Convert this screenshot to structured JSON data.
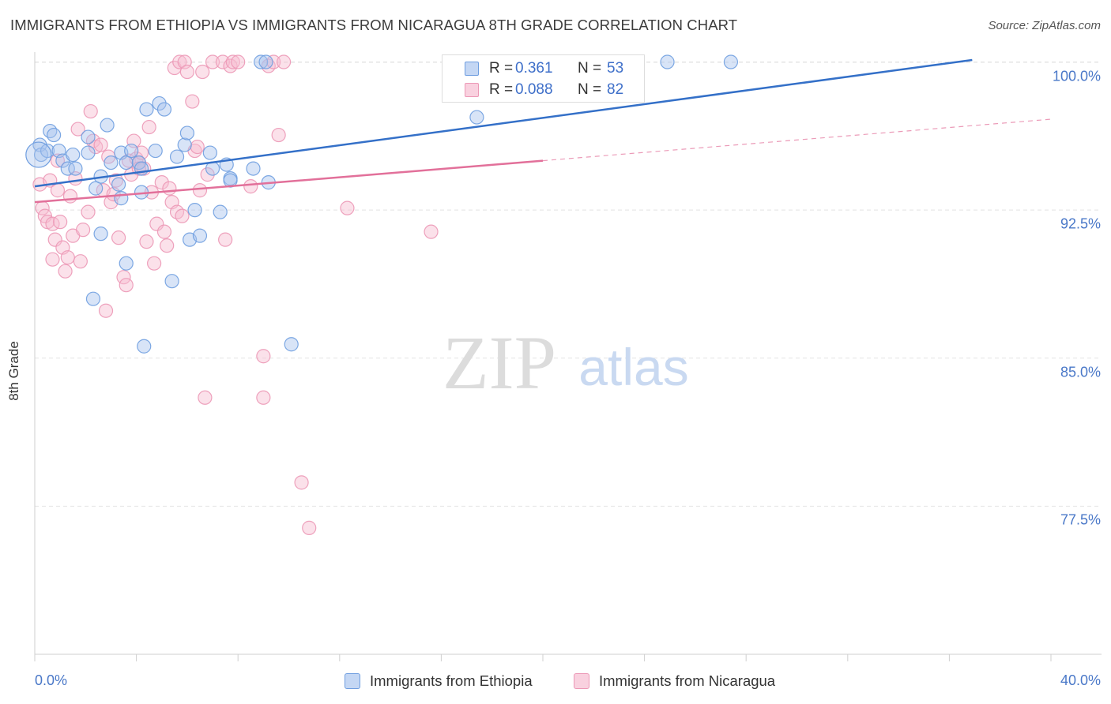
{
  "title": "IMMIGRANTS FROM ETHIOPIA VS IMMIGRANTS FROM NICARAGUA 8TH GRADE CORRELATION CHART",
  "source": "Source: ZipAtlas.com",
  "watermark": {
    "zip": "ZIP",
    "atlas": "atlas"
  },
  "legend": {
    "rows": [
      {
        "r_label": "R =",
        "r_value": "0.361",
        "n_label": "N =",
        "n_value": "53"
      },
      {
        "r_label": "R =",
        "r_value": "0.088",
        "n_label": "N =",
        "n_value": "82"
      }
    ]
  },
  "colors": {
    "ethiopia_fill": "#a8c4ee",
    "ethiopia_stroke": "#6f9ee0",
    "ethiopia_line": "#3470c8",
    "nicaragua_fill": "#f6bcd0",
    "nicaragua_stroke": "#ec98b6",
    "nicaragua_line": "#e2709a",
    "tick_text": "#4a78c8",
    "grid": "#e4e4e4"
  },
  "chart_data": {
    "type": "scatter",
    "title": "IMMIGRANTS FROM ETHIOPIA VS IMMIGRANTS FROM NICARAGUA 8TH GRADE CORRELATION CHART",
    "xlabel": "",
    "ylabel": "8th Grade",
    "xlim": [
      0,
      40
    ],
    "ylim": [
      70.0,
      100.5
    ],
    "x_tick_labels": [
      "0.0%",
      "40.0%"
    ],
    "y_ticks": [
      100.0,
      92.5,
      85.0,
      77.5
    ],
    "y_tick_labels": [
      "100.0%",
      "92.5%",
      "85.0%",
      "77.5%"
    ],
    "grid": true,
    "legend_position": "top-center",
    "series": [
      {
        "name": "Immigrants from Ethiopia",
        "r": 0.361,
        "n": 53,
        "trend": {
          "x": [
            0,
            36.9
          ],
          "y": [
            93.7,
            100.1
          ]
        },
        "points": [
          [
            0.2,
            95.8
          ],
          [
            0.25,
            95.3
          ],
          [
            0.5,
            95.5
          ],
          [
            0.6,
            96.5
          ],
          [
            0.75,
            96.3
          ],
          [
            0.95,
            95.5
          ],
          [
            1.1,
            95.0
          ],
          [
            1.3,
            94.6
          ],
          [
            1.6,
            94.6
          ],
          [
            1.5,
            95.3
          ],
          [
            2.1,
            96.2
          ],
          [
            2.1,
            95.4
          ],
          [
            2.4,
            93.6
          ],
          [
            2.6,
            94.2
          ],
          [
            2.6,
            91.3
          ],
          [
            2.85,
            96.8
          ],
          [
            3.0,
            94.9
          ],
          [
            2.3,
            88.0
          ],
          [
            3.3,
            93.8
          ],
          [
            3.4,
            93.1
          ],
          [
            3.4,
            95.4
          ],
          [
            3.6,
            94.9
          ],
          [
            3.8,
            95.5
          ],
          [
            3.6,
            89.8
          ],
          [
            4.1,
            94.9
          ],
          [
            4.2,
            94.6
          ],
          [
            4.2,
            93.4
          ],
          [
            4.3,
            85.6
          ],
          [
            4.4,
            97.6
          ],
          [
            4.75,
            95.5
          ],
          [
            4.9,
            97.9
          ],
          [
            5.1,
            97.6
          ],
          [
            5.4,
            88.9
          ],
          [
            5.6,
            95.2
          ],
          [
            5.9,
            95.8
          ],
          [
            6.0,
            96.4
          ],
          [
            6.1,
            91.0
          ],
          [
            6.3,
            92.5
          ],
          [
            6.5,
            91.2
          ],
          [
            6.9,
            95.4
          ],
          [
            7.0,
            94.6
          ],
          [
            7.3,
            92.4
          ],
          [
            7.55,
            94.8
          ],
          [
            7.7,
            94.1
          ],
          [
            7.7,
            94.0
          ],
          [
            8.6,
            94.6
          ],
          [
            8.9,
            100.0
          ],
          [
            9.1,
            100.0
          ],
          [
            9.2,
            93.9
          ],
          [
            10.1,
            85.7
          ],
          [
            17.4,
            97.2
          ],
          [
            24.9,
            100.0
          ],
          [
            27.4,
            100.0
          ]
        ]
      },
      {
        "name": "Immigrants from Nicaragua",
        "r": 0.088,
        "n": 82,
        "trend": {
          "x": [
            0,
            20
          ],
          "y": [
            92.9,
            95.0
          ]
        },
        "trend_dashed": {
          "x": [
            20,
            40
          ],
          "y": [
            95.0,
            97.1
          ]
        },
        "points": [
          [
            0.2,
            93.8
          ],
          [
            0.3,
            92.6
          ],
          [
            0.4,
            92.2
          ],
          [
            0.5,
            91.9
          ],
          [
            0.6,
            94.0
          ],
          [
            0.7,
            91.8
          ],
          [
            0.7,
            90.0
          ],
          [
            0.8,
            91.0
          ],
          [
            0.9,
            93.5
          ],
          [
            1.0,
            91.9
          ],
          [
            1.1,
            90.6
          ],
          [
            1.2,
            89.4
          ],
          [
            1.3,
            90.1
          ],
          [
            1.4,
            93.2
          ],
          [
            1.5,
            91.2
          ],
          [
            1.6,
            94.1
          ],
          [
            1.7,
            96.6
          ],
          [
            1.8,
            89.9
          ],
          [
            1.9,
            91.5
          ],
          [
            2.1,
            92.4
          ],
          [
            2.2,
            97.5
          ],
          [
            2.3,
            96.0
          ],
          [
            2.4,
            95.7
          ],
          [
            2.6,
            95.8
          ],
          [
            2.7,
            93.5
          ],
          [
            2.8,
            87.4
          ],
          [
            3.0,
            92.9
          ],
          [
            3.1,
            93.3
          ],
          [
            3.2,
            94.0
          ],
          [
            3.3,
            91.1
          ],
          [
            3.5,
            89.1
          ],
          [
            3.6,
            88.7
          ],
          [
            3.7,
            95.0
          ],
          [
            3.8,
            94.3
          ],
          [
            3.9,
            96.0
          ],
          [
            4.0,
            95.1
          ],
          [
            4.1,
            94.9
          ],
          [
            4.2,
            95.4
          ],
          [
            4.3,
            94.6
          ],
          [
            4.4,
            90.9
          ],
          [
            4.5,
            96.7
          ],
          [
            4.6,
            93.4
          ],
          [
            4.7,
            89.8
          ],
          [
            4.8,
            91.8
          ],
          [
            5.0,
            93.9
          ],
          [
            5.1,
            91.4
          ],
          [
            5.2,
            90.7
          ],
          [
            5.3,
            93.6
          ],
          [
            5.4,
            92.9
          ],
          [
            5.5,
            99.7
          ],
          [
            5.6,
            92.4
          ],
          [
            5.7,
            100.0
          ],
          [
            5.8,
            92.2
          ],
          [
            5.9,
            100.0
          ],
          [
            6.0,
            99.5
          ],
          [
            6.2,
            98.0
          ],
          [
            6.3,
            95.5
          ],
          [
            6.4,
            95.7
          ],
          [
            6.5,
            93.5
          ],
          [
            6.6,
            99.5
          ],
          [
            6.7,
            83.0
          ],
          [
            6.8,
            94.3
          ],
          [
            7.0,
            100.0
          ],
          [
            7.4,
            100.0
          ],
          [
            7.7,
            99.8
          ],
          [
            7.8,
            100.0
          ],
          [
            7.5,
            91.0
          ],
          [
            8.0,
            100.0
          ],
          [
            8.5,
            93.7
          ],
          [
            9.0,
            85.1
          ],
          [
            9.0,
            83.0
          ],
          [
            9.2,
            99.8
          ],
          [
            9.4,
            100.0
          ],
          [
            9.6,
            96.3
          ],
          [
            9.8,
            100.0
          ],
          [
            10.5,
            78.7
          ],
          [
            10.8,
            76.4
          ],
          [
            12.3,
            92.6
          ],
          [
            15.6,
            91.4
          ],
          [
            4.1,
            94.6
          ],
          [
            2.9,
            95.2
          ],
          [
            0.9,
            95.0
          ]
        ]
      }
    ]
  },
  "bottom_legend": [
    {
      "label": "Immigrants from Ethiopia"
    },
    {
      "label": "Immigrants from Nicaragua"
    }
  ]
}
